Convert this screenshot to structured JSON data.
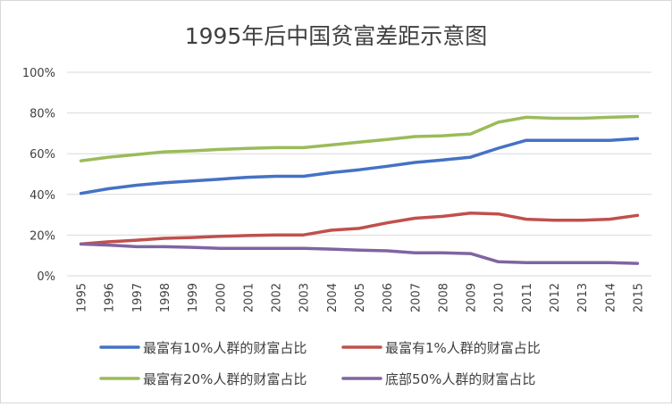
{
  "chart_data": {
    "type": "line",
    "title": "1995年后中国贫富差距示意图",
    "xlabel": "",
    "ylabel": "",
    "ylim": [
      0,
      100
    ],
    "yticks": [
      "0%",
      "20%",
      "40%",
      "60%",
      "80%",
      "100%"
    ],
    "grid": true,
    "legend_position": "bottom",
    "categories": [
      "1995",
      "1996",
      "1997",
      "1998",
      "1999",
      "2000",
      "2001",
      "2002",
      "2003",
      "2004",
      "2005",
      "2006",
      "2007",
      "2008",
      "2009",
      "2010",
      "2011",
      "2012",
      "2013",
      "2014",
      "2015"
    ],
    "series": [
      {
        "name": "最富有10%人群的财富占比",
        "color": "#4472c4",
        "values": [
          40.5,
          42.8,
          44.5,
          45.7,
          46.6,
          47.5,
          48.4,
          48.9,
          48.9,
          50.7,
          52.1,
          53.8,
          55.7,
          56.9,
          58.3,
          62.7,
          66.6,
          66.6,
          66.6,
          66.6,
          67.4
        ]
      },
      {
        "name": "最富有1%人群的财富占比",
        "color": "#c0504d",
        "values": [
          15.6,
          16.7,
          17.5,
          18.4,
          18.8,
          19.4,
          19.8,
          20.1,
          20.1,
          22.4,
          23.3,
          26.0,
          28.3,
          29.2,
          30.8,
          30.4,
          27.8,
          27.3,
          27.3,
          27.8,
          29.7
        ]
      },
      {
        "name": "最富有20%人群的财富占比",
        "color": "#9bbb59",
        "values": [
          56.5,
          58.3,
          59.6,
          60.9,
          61.4,
          62.1,
          62.6,
          63.0,
          63.0,
          64.3,
          65.7,
          67.0,
          68.4,
          68.8,
          69.7,
          75.5,
          77.9,
          77.4,
          77.4,
          77.9,
          78.3
        ]
      },
      {
        "name": "底部50%人群的财富占比",
        "color": "#8064a2",
        "values": [
          15.6,
          15.1,
          14.3,
          14.3,
          14.0,
          13.5,
          13.5,
          13.5,
          13.5,
          13.1,
          12.6,
          12.3,
          11.3,
          11.3,
          10.9,
          6.9,
          6.5,
          6.5,
          6.5,
          6.5,
          6.1
        ]
      }
    ]
  }
}
